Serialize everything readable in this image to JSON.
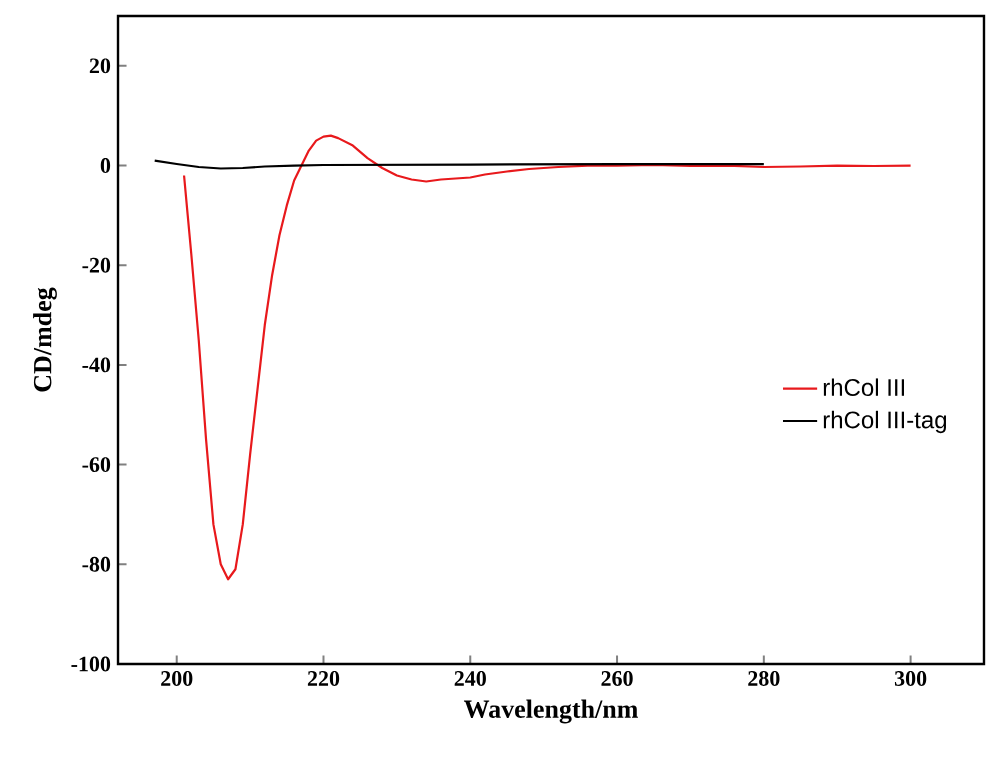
{
  "chart_data": {
    "type": "line",
    "xlabel": "Wavelength/nm",
    "ylabel": "CD/mdeg",
    "xlim": [
      192,
      310
    ],
    "ylim": [
      -100,
      30
    ],
    "xticks": [
      200,
      220,
      240,
      260,
      280,
      300
    ],
    "yticks": [
      -100,
      -80,
      -60,
      -40,
      -20,
      0,
      20
    ],
    "legend": "right",
    "grid": false,
    "marker": "none",
    "line_style": "solid",
    "series": [
      {
        "name": "rhCol III",
        "color": "#e8191c",
        "x": [
          201,
          201.5,
          202,
          203,
          204,
          205,
          206,
          207,
          208,
          209,
          210,
          211,
          212,
          213,
          214,
          215,
          216,
          217,
          218,
          219,
          220,
          221,
          222,
          224,
          226,
          228,
          230,
          232,
          234,
          236,
          238,
          240,
          242,
          245,
          248,
          252,
          256,
          260,
          265,
          270,
          275,
          280,
          285,
          290,
          295,
          300
        ],
        "values": [
          -2,
          -10,
          -18,
          -35,
          -55,
          -72,
          -80,
          -83,
          -81,
          -72,
          -58,
          -45,
          -32,
          -22,
          -14,
          -8,
          -3,
          0,
          3,
          5,
          5.8,
          6,
          5.5,
          4,
          1.5,
          -0.5,
          -2,
          -2.8,
          -3.2,
          -2.8,
          -2.6,
          -2.4,
          -1.8,
          -1.2,
          -0.7,
          -0.3,
          0,
          0,
          0.1,
          -0.1,
          0,
          -0.3,
          -0.2,
          0,
          -0.1,
          0
        ]
      },
      {
        "name": "rhCol III-tag",
        "color": "#000000",
        "x": [
          197,
          200,
          203,
          206,
          209,
          212,
          216,
          220,
          240,
          260,
          280
        ],
        "values": [
          1,
          0.3,
          -0.3,
          -0.6,
          -0.5,
          -0.2,
          0,
          0.1,
          0.2,
          0.3,
          0.3
        ]
      }
    ]
  }
}
